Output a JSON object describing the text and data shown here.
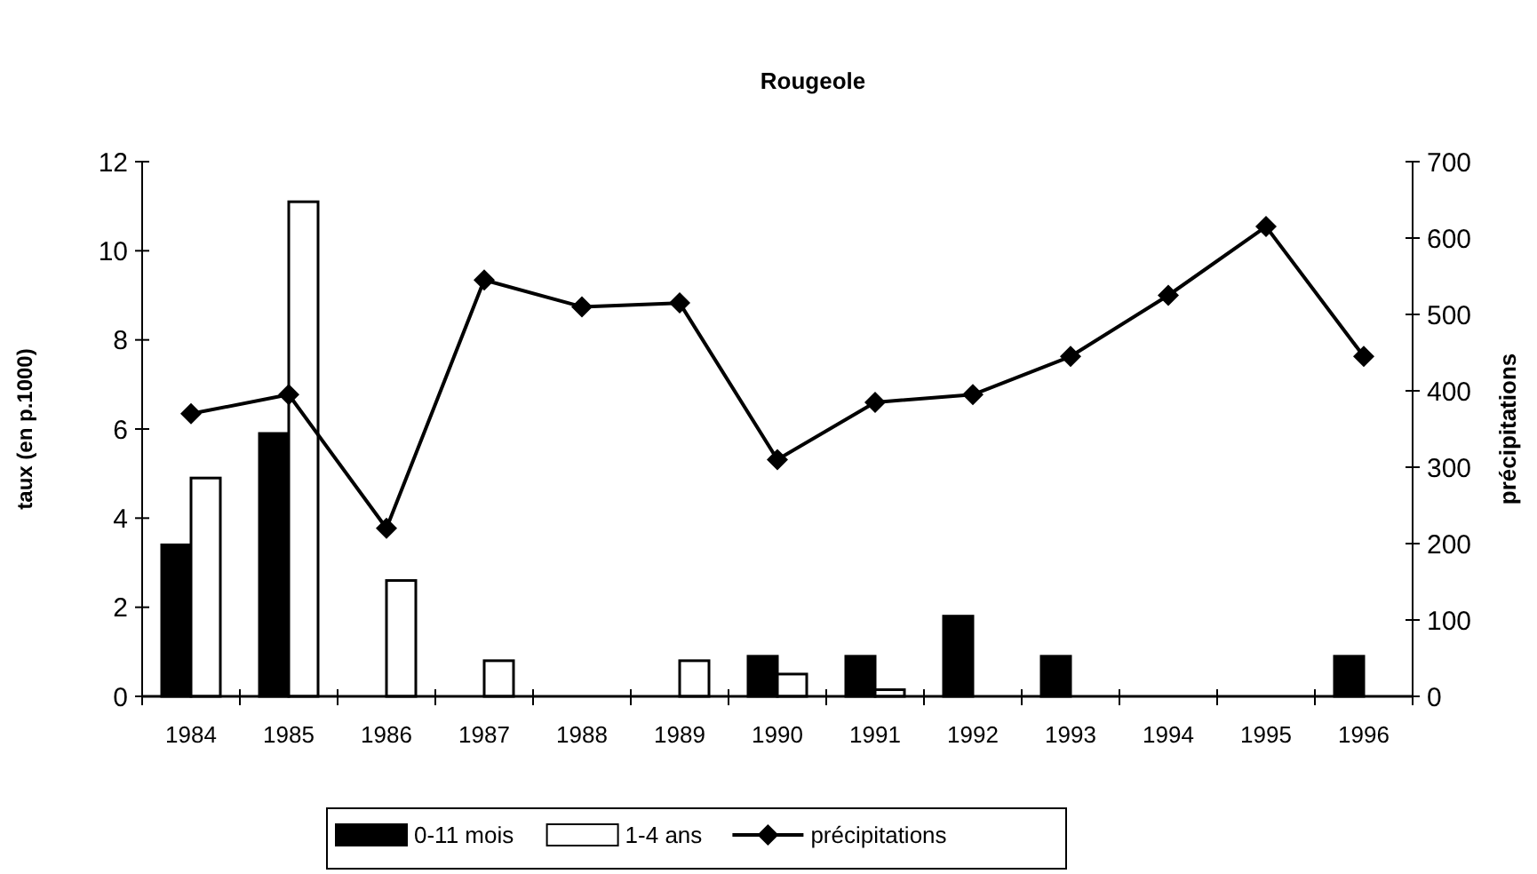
{
  "chart_data": {
    "type": "bar",
    "title": "Rougeole",
    "ylabel": "taux (en p.1000)",
    "y2label": "précipitations",
    "categories": [
      "1984",
      "1985",
      "1986",
      "1987",
      "1988",
      "1989",
      "1990",
      "1991",
      "1992",
      "1993",
      "1994",
      "1995",
      "1996"
    ],
    "series": [
      {
        "name": "0-11 mois",
        "color": "#000000",
        "values": [
          3.4,
          5.9,
          0,
          0,
          0,
          0,
          0.9,
          0.9,
          1.8,
          0.9,
          0,
          0,
          0.9
        ]
      },
      {
        "name": "1-4 ans",
        "color": "#ffffff",
        "values": [
          4.9,
          11.1,
          2.6,
          0.8,
          0,
          0.8,
          0.5,
          0.15,
          0,
          0,
          0,
          0,
          0
        ]
      },
      {
        "name": "précipitations",
        "type": "line",
        "axis": "y2",
        "color": "#000000",
        "marker": "diamond",
        "values": [
          370,
          395,
          220,
          545,
          510,
          515,
          310,
          385,
          395,
          445,
          525,
          615,
          445
        ]
      }
    ],
    "ylim": [
      0,
      12
    ],
    "yticks": [
      0,
      2,
      4,
      6,
      8,
      10,
      12
    ],
    "y2lim": [
      0,
      700
    ],
    "y2ticks": [
      0,
      100,
      200,
      300,
      400,
      500,
      600,
      700
    ],
    "legend": "bottom",
    "grid": false
  }
}
